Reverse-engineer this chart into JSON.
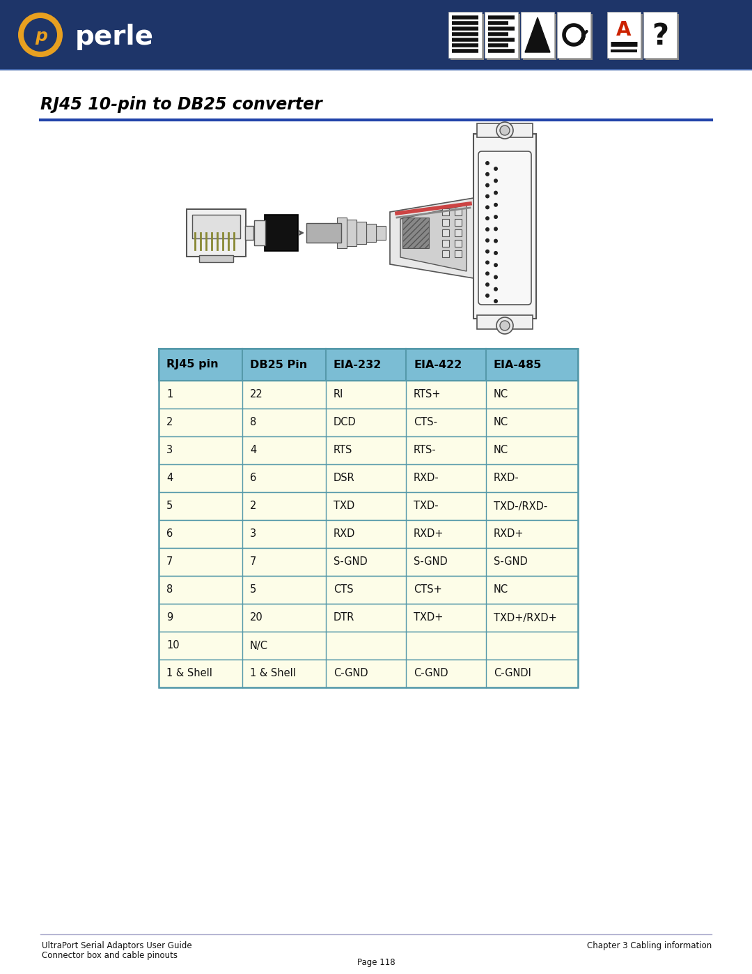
{
  "page_bg": "#ffffff",
  "header_bg": "#1e3569",
  "title_text": "RJ45 10-pin to DB25 converter",
  "divider_color": "#2244aa",
  "table_header_bg": "#7bbdd4",
  "table_border_color": "#5599aa",
  "table_row_bg": "#fdfde8",
  "col_headers": [
    "RJ45 pin",
    "DB25 Pin",
    "EIA-232",
    "EIA-422",
    "EIA-485"
  ],
  "rows": [
    [
      "1",
      "22",
      "RI",
      "RTS+",
      "NC"
    ],
    [
      "2",
      "8",
      "DCD",
      "CTS-",
      "NC"
    ],
    [
      "3",
      "4",
      "RTS",
      "RTS-",
      "NC"
    ],
    [
      "4",
      "6",
      "DSR",
      "RXD-",
      "RXD-"
    ],
    [
      "5",
      "2",
      "TXD",
      "TXD-",
      "TXD-/RXD-"
    ],
    [
      "6",
      "3",
      "RXD",
      "RXD+",
      "RXD+"
    ],
    [
      "7",
      "7",
      "S-GND",
      "S-GND",
      "S-GND"
    ],
    [
      "8",
      "5",
      "CTS",
      "CTS+",
      "NC"
    ],
    [
      "9",
      "20",
      "DTR",
      "TXD+",
      "TXD+/RXD+"
    ],
    [
      "10",
      "N/C",
      "",
      "",
      ""
    ],
    [
      "1 & Shell",
      "1 & Shell",
      "C-GND",
      "C-GND",
      "C-GNDI"
    ]
  ],
  "footer_left_line1": "UltraPort Serial Adaptors User Guide",
  "footer_left_line2": "Connector box and cable pinouts",
  "footer_right": "Chapter 3 Cabling information",
  "footer_center": "Page 118",
  "footer_divider_color": "#aaaacc",
  "connector_outline": "#555555",
  "connector_fill_light": "#f0f0f0",
  "connector_fill_mid": "#d8d8d8",
  "connector_fill_dark": "#aaaaaa"
}
